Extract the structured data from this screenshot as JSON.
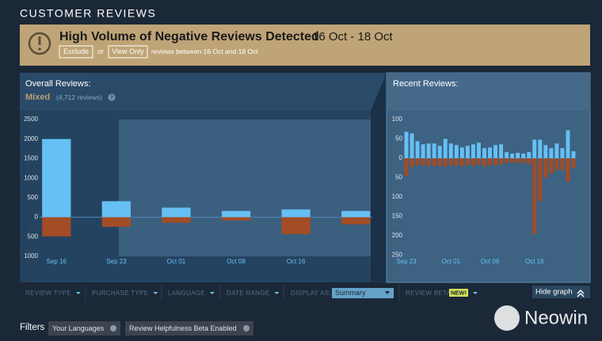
{
  "header": {
    "title": "CUSTOMER REVIEWS"
  },
  "alert": {
    "title": "High Volume of Negative Reviews Detected",
    "dates": "16 Oct - 18 Oct",
    "exclude": "Exclude",
    "or": "or",
    "view_only": "View Only",
    "note": "reviews between 16 Oct and 18 Oct"
  },
  "overall": {
    "label": "Overall Reviews:",
    "rating": "Mixed",
    "count": "(4,712 reviews)",
    "help": "?"
  },
  "recent": {
    "label": "Recent Reviews:"
  },
  "chart_data": [
    {
      "type": "bar",
      "categories": [
        "Sep 16",
        "Sep 23",
        "Oct 01",
        "Oct 08",
        "Oct 16",
        null
      ],
      "series": [
        {
          "color": "#66c0f4",
          "values": [
            2000,
            410,
            245,
            160,
            200,
            160
          ]
        },
        {
          "color": "#a34c25",
          "values": [
            -490,
            -245,
            -140,
            -80,
            -430,
            -180
          ]
        }
      ],
      "ylim": [
        -1000,
        2500
      ],
      "yticks": [
        2500,
        2000,
        1500,
        1000,
        500,
        0,
        {
          "value": -500,
          "label": "500"
        },
        {
          "value": -1000,
          "label": "1000"
        }
      ],
      "grid": false
    },
    {
      "type": "bar",
      "categories": [
        "Sep 23",
        null,
        null,
        null,
        null,
        null,
        null,
        null,
        "Oct 01",
        null,
        null,
        null,
        null,
        null,
        null,
        "Oct 08",
        null,
        null,
        null,
        null,
        null,
        null,
        null,
        "Oct 16",
        null,
        null,
        null,
        null,
        null,
        null,
        null
      ],
      "series": [
        {
          "color": "#66c0f4",
          "values": [
            68,
            64,
            44,
            36,
            38,
            38,
            32,
            50,
            38,
            34,
            28,
            32,
            36,
            40,
            26,
            28,
            34,
            36,
            16,
            12,
            14,
            12,
            16,
            48,
            48,
            34,
            26,
            38,
            26,
            72,
            18
          ]
        },
        {
          "color": "#a34c25",
          "values": [
            -45,
            -22,
            -18,
            -18,
            -20,
            -20,
            -20,
            -22,
            -18,
            -20,
            -20,
            -18,
            -20,
            -16,
            -22,
            -18,
            -18,
            -16,
            -12,
            -12,
            -12,
            -12,
            -16,
            -195,
            -110,
            -50,
            -40,
            -30,
            -30,
            -60,
            -25
          ]
        }
      ],
      "ylim": [
        -250,
        100
      ],
      "yticks": [
        100,
        50,
        0,
        {
          "value": -50,
          "label": "50"
        },
        {
          "value": -100,
          "label": "100"
        },
        {
          "value": -150,
          "label": "150"
        },
        {
          "value": -200,
          "label": "200"
        },
        {
          "value": -250,
          "label": "250"
        }
      ],
      "grid": false
    }
  ],
  "filters_bar": {
    "items": [
      "REVIEW TYPE",
      "PURCHASE TYPE",
      "LANGUAGE",
      "DATE RANGE"
    ],
    "display_as": "DISPLAY AS:",
    "display_value": "Summary",
    "beta": "REVIEW BETA",
    "new_badge": "NEW!",
    "hide_graph": "Hide graph"
  },
  "filters": {
    "label": "Filters",
    "chips": [
      "Your Languages",
      "Review Helpfulness Beta Enabled"
    ]
  },
  "watermark": "Neowin"
}
